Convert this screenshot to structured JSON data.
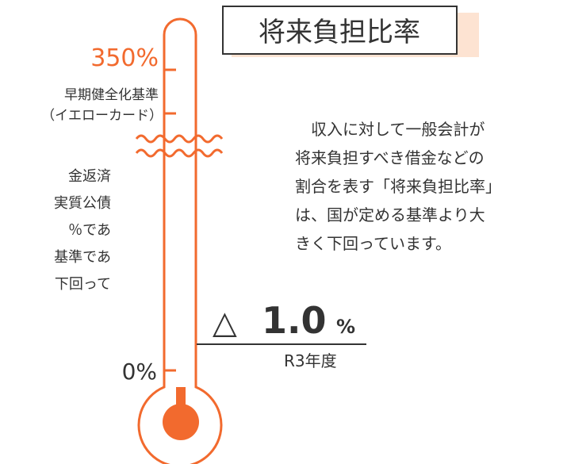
{
  "title": "将来負担比率",
  "scale": {
    "top_label": "350%",
    "top_note": [
      "早期健全化基準",
      "（イエローカード）"
    ],
    "bottom_label": "0%"
  },
  "left_text": [
    "金返済",
    "実質公債",
    "％であ",
    "基準であ",
    "下回って"
  ],
  "description": [
    "　収入に対して一般会計が",
    "将来負担すべき借金などの",
    "割合を表す「将来負担比率」",
    "は、国が定める基準より大",
    "きく下回っています。"
  ],
  "result": {
    "sign": "△",
    "number": "1.0",
    "unit": "%",
    "period": "R3年度"
  }
}
